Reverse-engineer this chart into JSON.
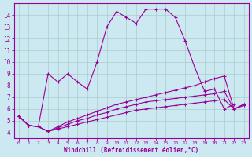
{
  "xlabel": "Windchill (Refroidissement éolien,°C)",
  "background_color": "#cce8f0",
  "grid_color": "#aacccc",
  "line_color": "#990099",
  "xlim": [
    -0.5,
    23.5
  ],
  "ylim": [
    3.5,
    15.0
  ],
  "xticks": [
    0,
    1,
    2,
    3,
    4,
    5,
    6,
    7,
    8,
    9,
    10,
    11,
    12,
    13,
    14,
    15,
    16,
    17,
    18,
    19,
    20,
    21,
    22,
    23
  ],
  "yticks": [
    4,
    5,
    6,
    7,
    8,
    9,
    10,
    11,
    12,
    13,
    14
  ],
  "series1_x": [
    0,
    1,
    2,
    3,
    4,
    5,
    6,
    7,
    8,
    9,
    10,
    11,
    12,
    13,
    14,
    15,
    16,
    17,
    18,
    19,
    20,
    21,
    22
  ],
  "series1_y": [
    5.4,
    4.6,
    4.5,
    9.0,
    8.3,
    9.0,
    8.3,
    7.7,
    10.0,
    13.0,
    14.3,
    13.8,
    13.3,
    14.5,
    14.5,
    14.5,
    13.8,
    11.8,
    9.5,
    7.5,
    7.7,
    6.0,
    6.4
  ],
  "series2_x": [
    0,
    1,
    2,
    3,
    4,
    5,
    6,
    7,
    8,
    9,
    10,
    11,
    12,
    13,
    14,
    15,
    16,
    17,
    18,
    19,
    20,
    21,
    22,
    23
  ],
  "series2_y": [
    5.4,
    4.6,
    4.5,
    4.1,
    4.3,
    4.5,
    4.7,
    4.9,
    5.1,
    5.3,
    5.5,
    5.7,
    5.9,
    6.0,
    6.1,
    6.2,
    6.3,
    6.4,
    6.5,
    6.6,
    6.7,
    6.8,
    6.0,
    6.3
  ],
  "series3_x": [
    0,
    1,
    2,
    3,
    4,
    5,
    6,
    7,
    8,
    9,
    10,
    11,
    12,
    13,
    14,
    15,
    16,
    17,
    18,
    19,
    20,
    21,
    22,
    23
  ],
  "series3_y": [
    5.4,
    4.6,
    4.5,
    4.1,
    4.4,
    4.7,
    5.0,
    5.2,
    5.5,
    5.7,
    6.0,
    6.2,
    6.4,
    6.6,
    6.7,
    6.8,
    6.9,
    7.0,
    7.1,
    7.2,
    7.3,
    7.5,
    6.0,
    6.4
  ],
  "series4_x": [
    0,
    1,
    2,
    3,
    4,
    5,
    6,
    7,
    8,
    9,
    10,
    11,
    12,
    13,
    14,
    15,
    16,
    17,
    18,
    19,
    20,
    21,
    22,
    23
  ],
  "series4_y": [
    5.4,
    4.6,
    4.5,
    4.1,
    4.5,
    4.9,
    5.2,
    5.5,
    5.8,
    6.1,
    6.4,
    6.6,
    6.8,
    7.0,
    7.2,
    7.4,
    7.6,
    7.8,
    8.0,
    8.3,
    8.6,
    8.8,
    6.0,
    6.4
  ]
}
